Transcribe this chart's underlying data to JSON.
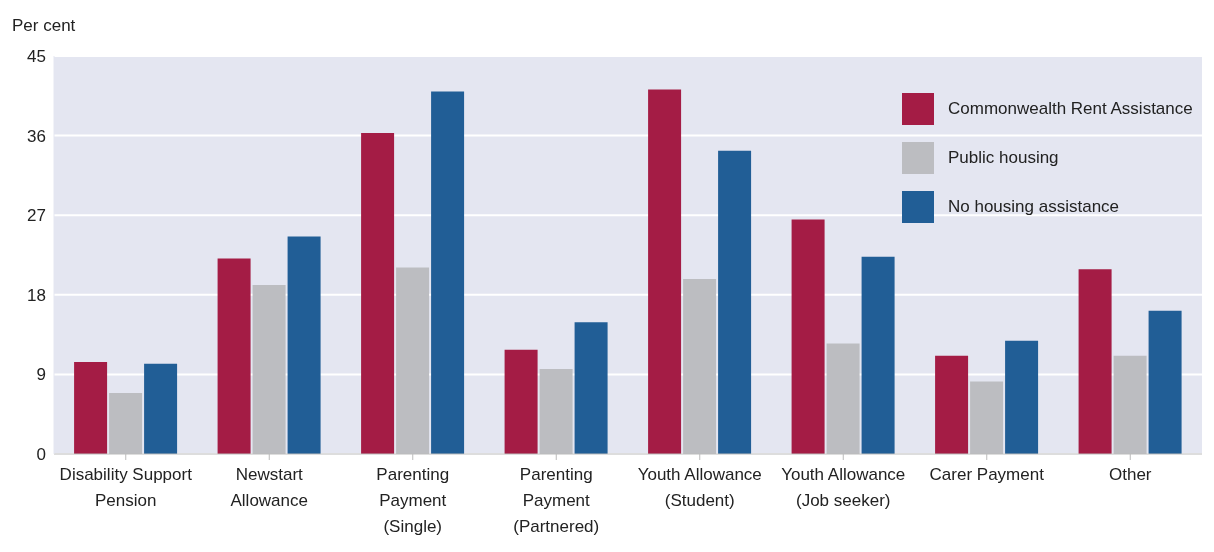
{
  "chart_data": {
    "type": "bar",
    "ylabel": "Per cent",
    "categories": [
      "Disability Support\nPension",
      "Newstart\nAllowance",
      "Parenting\nPayment\n(Single)",
      "Parenting\nPayment\n(Partnered)",
      "Youth Allowance\n(Student)",
      "Youth Allowance\n(Job seeker)",
      "Carer Payment",
      "Other"
    ],
    "series": [
      {
        "name": "Commonwealth Rent Assistance",
        "color": "#a41c45",
        "values": [
          10.4,
          22.1,
          36.3,
          11.8,
          41.2,
          26.5,
          11.1,
          20.9
        ]
      },
      {
        "name": "Public housing",
        "color": "#bcbdc1",
        "values": [
          6.9,
          19.1,
          21.1,
          9.6,
          19.8,
          12.5,
          8.2,
          11.1
        ]
      },
      {
        "name": "No housing assistance",
        "color": "#215e96",
        "values": [
          10.2,
          24.6,
          41.0,
          14.9,
          34.3,
          22.3,
          12.8,
          16.2
        ]
      }
    ],
    "ylim": [
      0,
      45
    ],
    "yticks": [
      0,
      9,
      18,
      27,
      36,
      45
    ],
    "grid": "y",
    "legend": "top right"
  }
}
